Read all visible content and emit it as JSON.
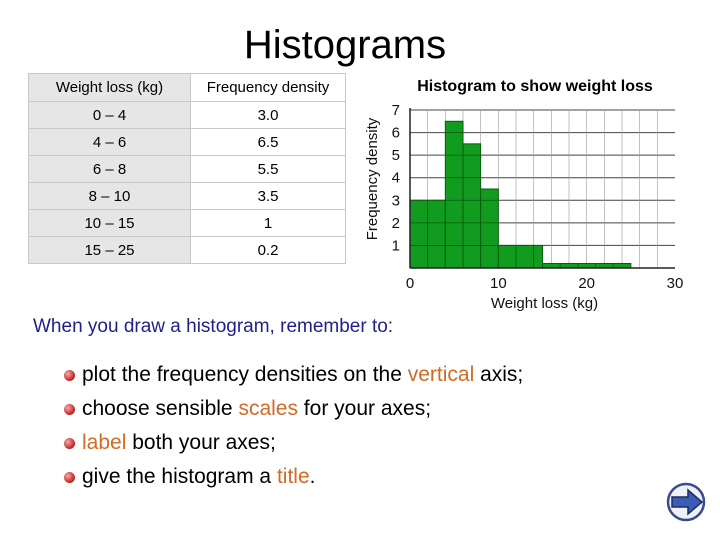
{
  "page": {
    "title": "Histograms"
  },
  "table": {
    "headers": [
      "Weight loss (kg)",
      "Frequency density"
    ],
    "rows": [
      [
        "0 – 4",
        "3.0"
      ],
      [
        "4 – 6",
        "6.5"
      ],
      [
        "6 – 8",
        "5.5"
      ],
      [
        "8 – 10",
        "3.5"
      ],
      [
        "10 – 15",
        "1"
      ],
      [
        "15 – 25",
        "0.2"
      ]
    ]
  },
  "chart_data": {
    "type": "bar",
    "title": "Histogram to show weight loss",
    "xlabel": "Weight loss (kg)",
    "ylabel": "Frequency density",
    "bins": [
      [
        0,
        4
      ],
      [
        4,
        6
      ],
      [
        6,
        8
      ],
      [
        8,
        10
      ],
      [
        10,
        15
      ],
      [
        15,
        25
      ]
    ],
    "values": [
      3.0,
      6.5,
      5.5,
      3.5,
      1,
      0.2
    ],
    "xlim": [
      0,
      30
    ],
    "ylim": [
      0,
      7
    ],
    "x_ticks": [
      "0",
      "10",
      "20",
      "30"
    ],
    "y_ticks": [
      "1",
      "2",
      "3",
      "4",
      "5",
      "6",
      "7"
    ],
    "grid": true,
    "bar_color": "#119c1f"
  },
  "prompt": "When you draw a histogram, remember to:",
  "tips": [
    {
      "before": "plot the frequency densities on the ",
      "highlight": "vertical",
      "after": " axis;"
    },
    {
      "before": "choose sensible ",
      "highlight": "scales",
      "after": " for your axes;"
    },
    {
      "before": "",
      "highlight": "label",
      "after": " both your axes;"
    },
    {
      "before": "give the histogram a ",
      "highlight": "title",
      "after": "."
    }
  ],
  "nav": {
    "next_icon": "arrow-right-icon"
  }
}
